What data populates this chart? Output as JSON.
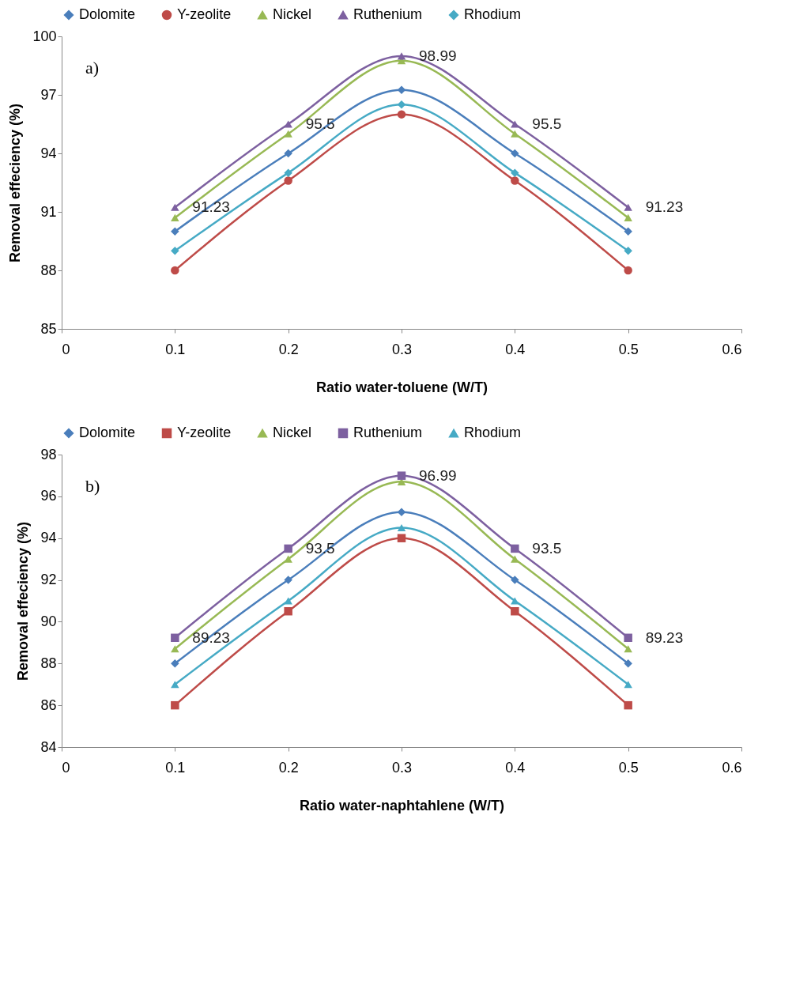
{
  "chart_data": [
    {
      "type": "line",
      "xlabel": "Ratio water-toluene (W/T)",
      "ylabel": "Removal effeciency  (%)",
      "annotations": [
        "a)"
      ],
      "legend": "top",
      "x": [
        0.1,
        0.2,
        0.3,
        0.4,
        0.5
      ],
      "xlim": [
        0,
        0.6
      ],
      "xticks": [
        0,
        0.1,
        0.2,
        0.3,
        0.4,
        0.5,
        0.6
      ],
      "ylim": [
        85,
        100
      ],
      "yticks": [
        85,
        88,
        91,
        94,
        97,
        100
      ],
      "series": [
        {
          "name": "Dolomite",
          "color": "#4a7ebb",
          "marker": "diamond",
          "values": [
            90,
            94,
            97.25,
            94,
            90
          ]
        },
        {
          "name": "Y-zeolite",
          "color": "#be4b48",
          "marker": "circle",
          "values": [
            88,
            92.6,
            96,
            92.6,
            88
          ]
        },
        {
          "name": "Nickel",
          "color": "#98b954",
          "marker": "triangle",
          "values": [
            90.7,
            95,
            98.75,
            95,
            90.7
          ]
        },
        {
          "name": "Ruthenium",
          "color": "#7d60a0",
          "marker": "triangle",
          "values": [
            91.23,
            95.5,
            98.99,
            95.5,
            91.23
          ],
          "value_labels": [
            "91.23",
            "95.5",
            "98.99",
            "95.5",
            "91.23"
          ]
        },
        {
          "name": "Rhodium",
          "color": "#46aac5",
          "marker": "diamond",
          "values": [
            89,
            93,
            96.5,
            93,
            89
          ]
        }
      ]
    },
    {
      "type": "line",
      "xlabel": "Ratio water-naphtahlene (W/T)",
      "ylabel": "Removal effeciency (%)",
      "annotations": [
        "b)"
      ],
      "legend": "top",
      "x": [
        0.1,
        0.2,
        0.3,
        0.4,
        0.5
      ],
      "xlim": [
        0,
        0.6
      ],
      "xticks": [
        0,
        0.1,
        0.2,
        0.3,
        0.4,
        0.5,
        0.6
      ],
      "ylim": [
        84,
        98
      ],
      "yticks": [
        84,
        86,
        88,
        90,
        92,
        94,
        96,
        98
      ],
      "series": [
        {
          "name": "Dolomite",
          "color": "#4a7ebb",
          "marker": "diamond",
          "values": [
            88,
            92,
            95.25,
            92,
            88
          ]
        },
        {
          "name": "Y-zeolite",
          "color": "#be4b48",
          "marker": "square",
          "values": [
            86,
            90.5,
            94,
            90.5,
            86
          ]
        },
        {
          "name": "Nickel",
          "color": "#98b954",
          "marker": "triangle",
          "values": [
            88.7,
            93,
            96.7,
            93,
            88.7
          ]
        },
        {
          "name": "Ruthenium",
          "color": "#7d60a0",
          "marker": "square",
          "values": [
            89.23,
            93.5,
            96.99,
            93.5,
            89.23
          ],
          "value_labels": [
            "89.23",
            "93.5",
            "96.99",
            "93.5",
            "89.23"
          ]
        },
        {
          "name": "Rhodium",
          "color": "#46aac5",
          "marker": "triangle",
          "values": [
            87,
            91,
            94.5,
            91,
            87
          ]
        }
      ]
    }
  ]
}
